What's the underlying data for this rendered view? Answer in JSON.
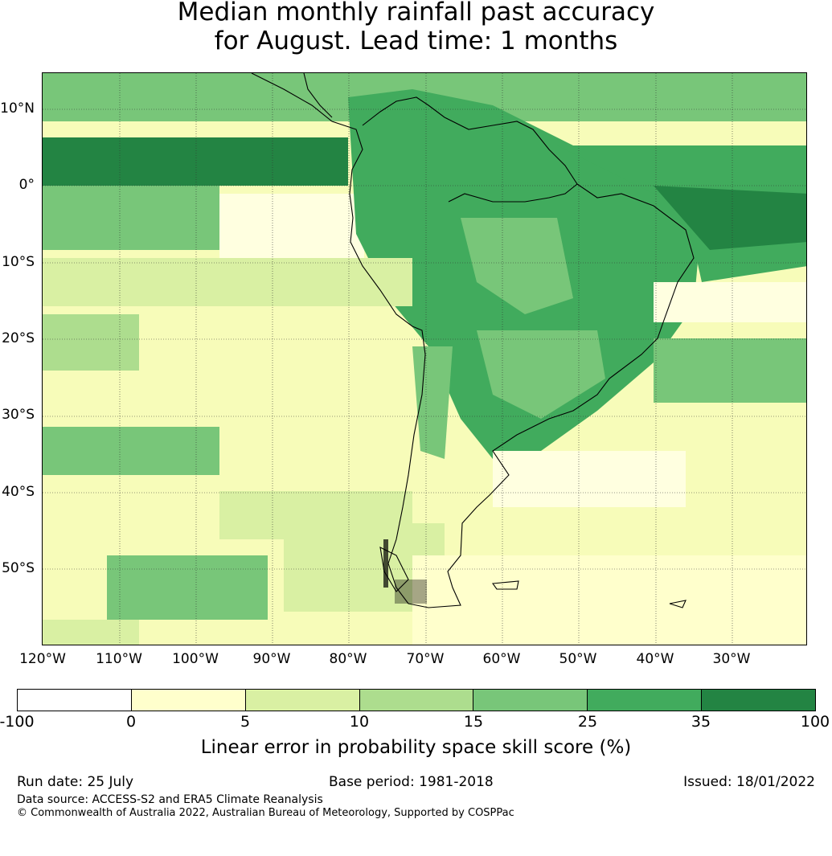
{
  "title": {
    "line1": "Median monthly rainfall past accuracy",
    "line2": "for August. Lead time: 1 months"
  },
  "map": {
    "lat_labels": [
      "10°N",
      "0°",
      "10°S",
      "20°S",
      "30°S",
      "40°S",
      "50°S"
    ],
    "lon_labels": [
      "120°W",
      "110°W",
      "100°W",
      "90°W",
      "80°W",
      "70°W",
      "60°W",
      "50°W",
      "40°W",
      "30°W"
    ],
    "background_color": "#f7fcb9",
    "gridline_color": "#333333"
  },
  "colorbar": {
    "ticks": [
      "-100",
      "0",
      "5",
      "10",
      "15",
      "25",
      "35",
      "100"
    ],
    "colors": [
      "#ffffff",
      "#ffffcc",
      "#d9f0a3",
      "#addd8e",
      "#78c679",
      "#41ab5d",
      "#238443"
    ],
    "label": "Linear error in probability space skill score (%)"
  },
  "footer": {
    "run_date": "Run date: 25 July",
    "base_period": "Base period: 1981-2018",
    "issued": "Issued: 18/01/2022",
    "data_source": "Data source: ACCESS-S2 and ERA5 Climate Reanalysis",
    "copyright": "© Commonwealth of Australia 2022, Australian Bureau of Meteorology, Supported by COSPPac"
  }
}
